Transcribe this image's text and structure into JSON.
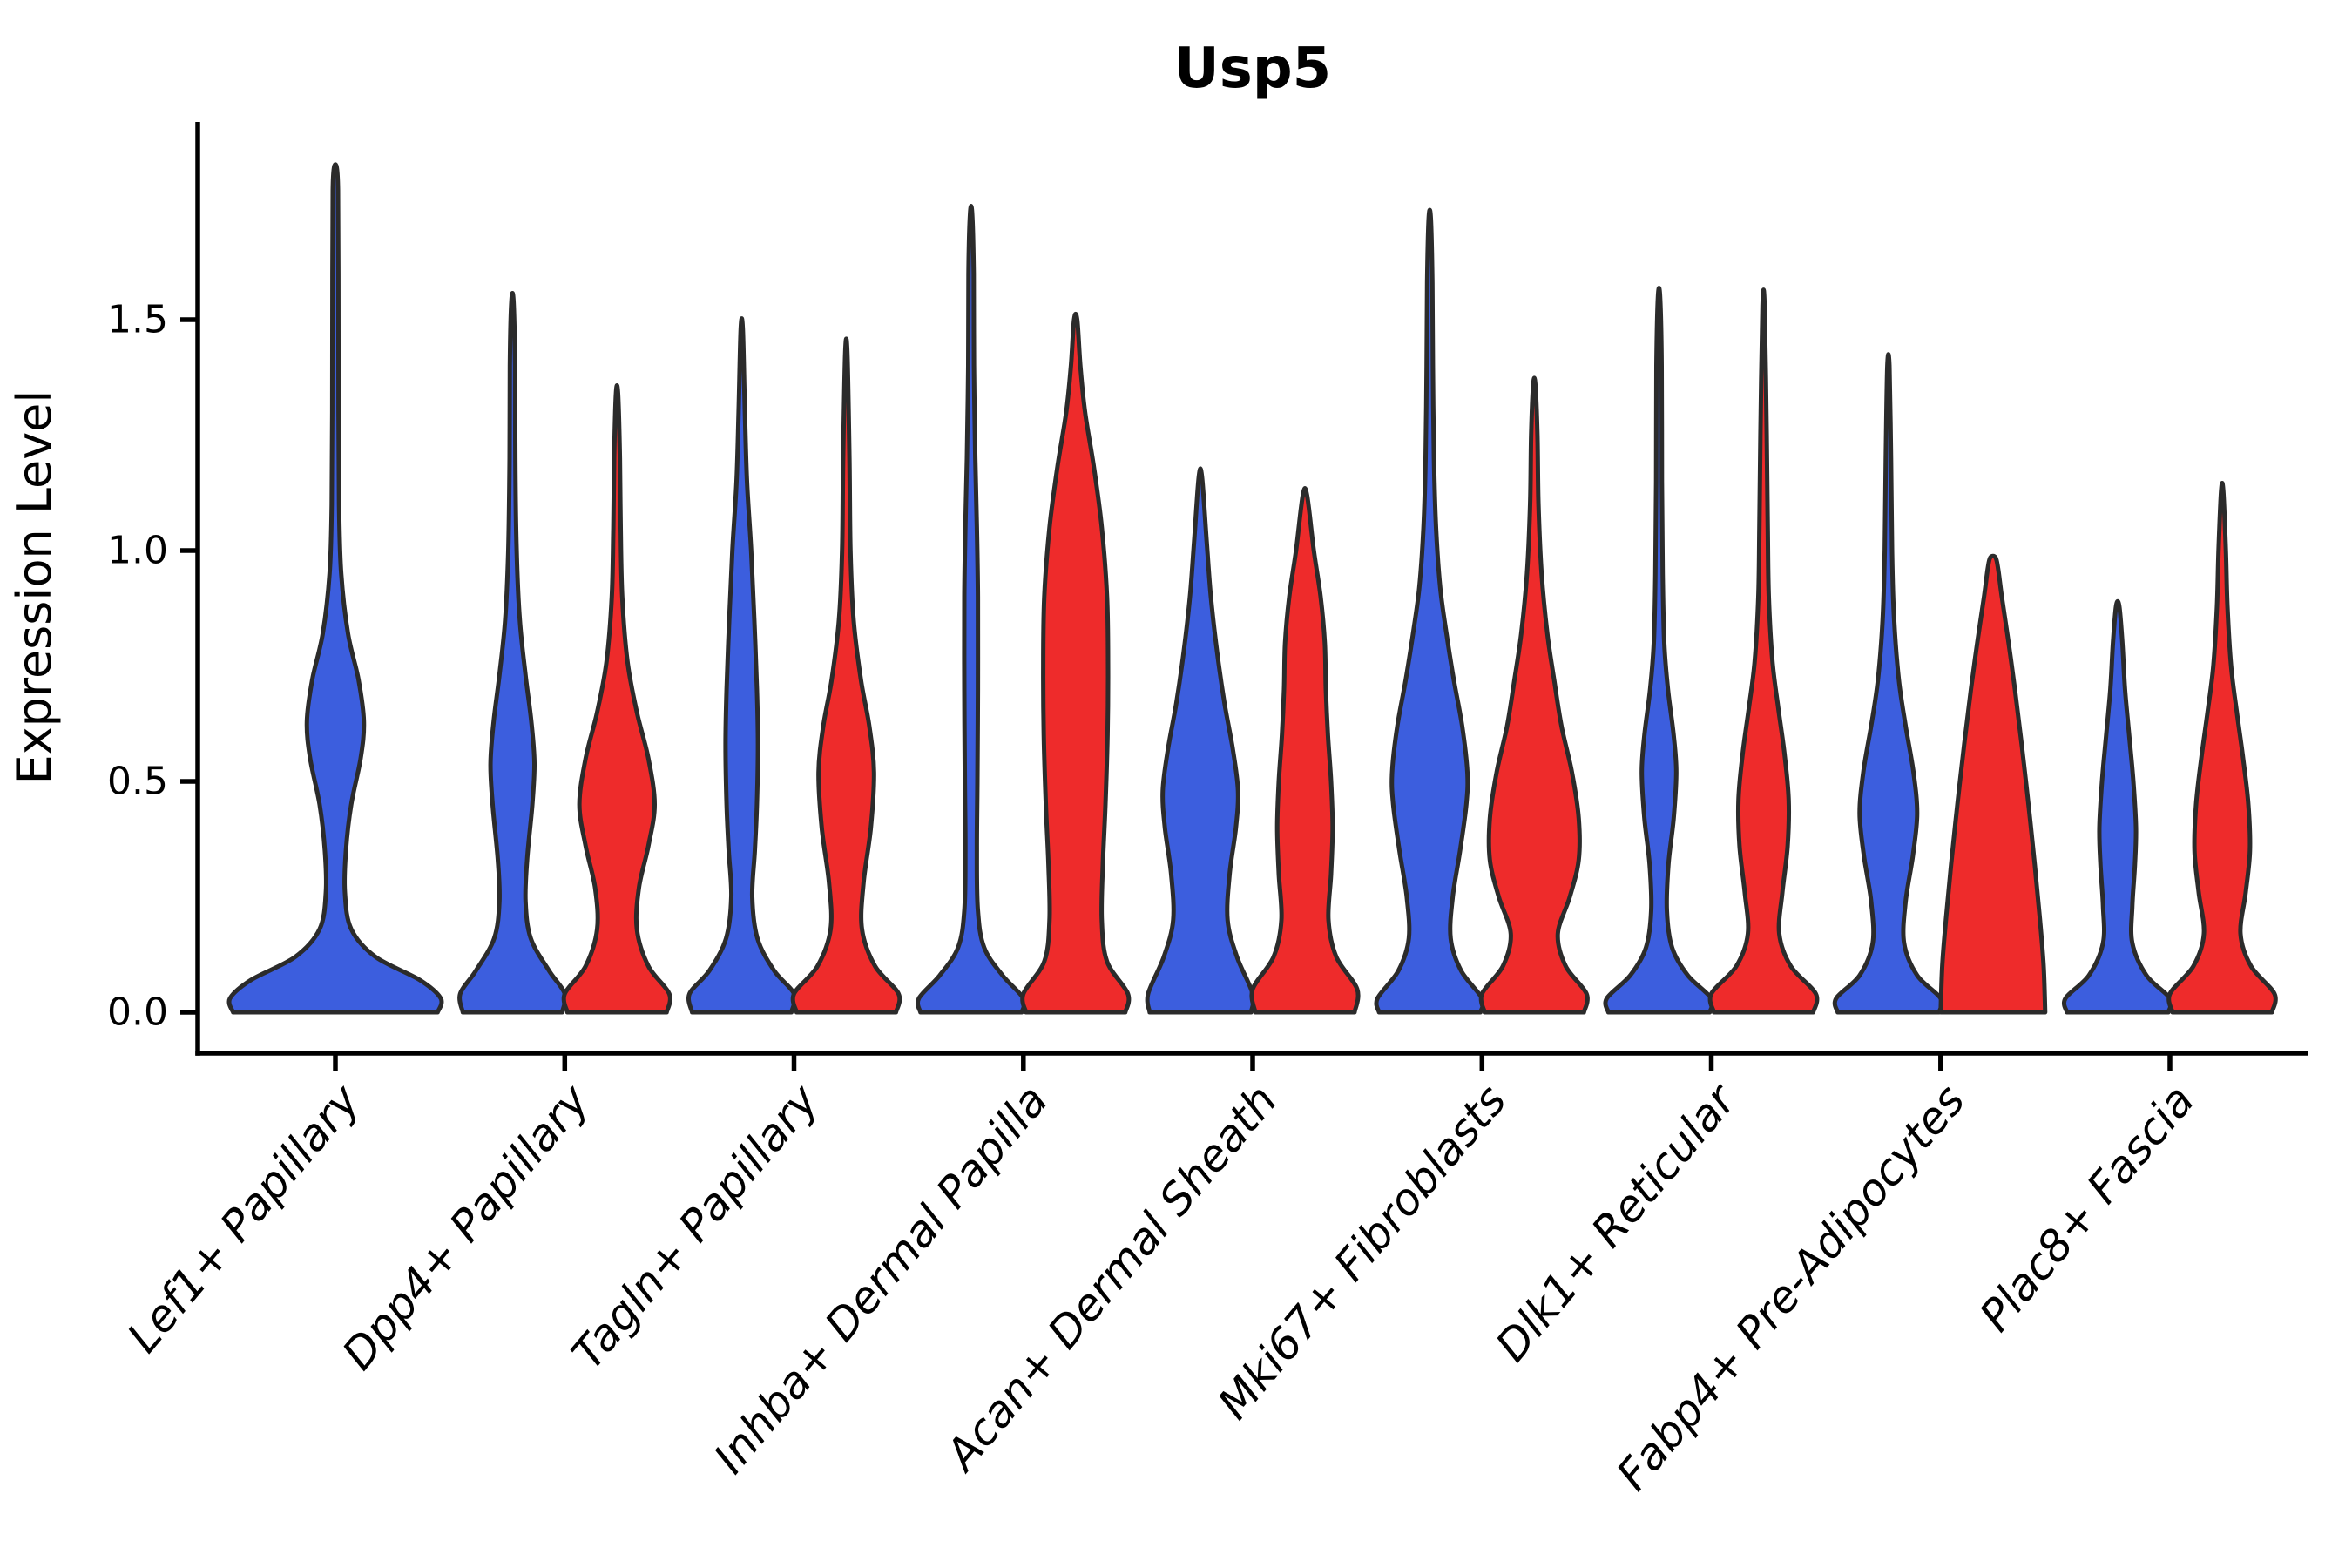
{
  "chart_data": {
    "type": "violin",
    "title": "Usp5",
    "ylabel": "Expression Level",
    "xlabel": "",
    "yticks": [
      0.0,
      0.5,
      1.0,
      1.5
    ],
    "ytick_labels": [
      "0.0",
      "0.5",
      "1.0",
      "1.5"
    ],
    "ylim": [
      -0.09,
      1.93
    ],
    "grid": false,
    "legend": "none",
    "categories": [
      "Lef1+ Papillary",
      "Dpp4+ Papillary",
      "Tagln+ Papillary",
      "Inhba+ Dermal Papilla",
      "Acan+ Dermal Sheath",
      "Mki67+ Fibroblasts",
      "Dlk1+ Reticular",
      "Fabp4+ Pre-Adipocytes",
      "Plac8+ Fascia"
    ],
    "series_colors": {
      "blue": "#3C5EDE",
      "red": "#EE2B2B"
    },
    "outline_color": "#2B2B2B",
    "violins": [
      {
        "category": "Lef1+ Papillary",
        "group": "blue",
        "side": "center",
        "color": "#3C5EDE",
        "max": 1.83,
        "profile": [
          [
            0,
            0.97
          ],
          [
            0.03,
            1.0
          ],
          [
            0.07,
            0.8
          ],
          [
            0.12,
            0.38
          ],
          [
            0.18,
            0.15
          ],
          [
            0.26,
            0.09
          ],
          [
            0.35,
            0.1
          ],
          [
            0.45,
            0.15
          ],
          [
            0.55,
            0.24
          ],
          [
            0.63,
            0.27
          ],
          [
            0.72,
            0.22
          ],
          [
            0.82,
            0.12
          ],
          [
            0.95,
            0.055
          ],
          [
            1.1,
            0.035
          ],
          [
            1.3,
            0.03
          ],
          [
            1.6,
            0.028
          ],
          [
            1.78,
            0.025
          ],
          [
            1.83,
            0.012
          ]
        ]
      },
      {
        "category": "Dpp4+ Papillary",
        "group": "blue",
        "side": "left",
        "color": "#3C5EDE",
        "max": 1.54,
        "profile": [
          [
            0,
            0.95
          ],
          [
            0.04,
            1.0
          ],
          [
            0.09,
            0.7
          ],
          [
            0.16,
            0.35
          ],
          [
            0.24,
            0.25
          ],
          [
            0.33,
            0.28
          ],
          [
            0.45,
            0.38
          ],
          [
            0.54,
            0.42
          ],
          [
            0.63,
            0.36
          ],
          [
            0.73,
            0.25
          ],
          [
            0.85,
            0.14
          ],
          [
            1.0,
            0.08
          ],
          [
            1.2,
            0.055
          ],
          [
            1.4,
            0.05
          ],
          [
            1.54,
            0.02
          ]
        ]
      },
      {
        "category": "Dpp4+ Papillary",
        "group": "red",
        "side": "right",
        "color": "#EE2B2B",
        "max": 1.34,
        "profile": [
          [
            0,
            0.95
          ],
          [
            0.04,
            1.0
          ],
          [
            0.1,
            0.6
          ],
          [
            0.18,
            0.38
          ],
          [
            0.27,
            0.42
          ],
          [
            0.36,
            0.6
          ],
          [
            0.45,
            0.72
          ],
          [
            0.55,
            0.6
          ],
          [
            0.65,
            0.38
          ],
          [
            0.76,
            0.2
          ],
          [
            0.9,
            0.1
          ],
          [
            1.05,
            0.07
          ],
          [
            1.2,
            0.055
          ],
          [
            1.34,
            0.02
          ]
        ]
      },
      {
        "category": "Tagln+ Papillary",
        "group": "blue",
        "side": "left",
        "color": "#3C5EDE",
        "max": 1.48,
        "profile": [
          [
            0,
            0.95
          ],
          [
            0.04,
            1.0
          ],
          [
            0.09,
            0.62
          ],
          [
            0.16,
            0.3
          ],
          [
            0.25,
            0.2
          ],
          [
            0.35,
            0.25
          ],
          [
            0.45,
            0.29
          ],
          [
            0.58,
            0.31
          ],
          [
            0.7,
            0.29
          ],
          [
            0.85,
            0.24
          ],
          [
            1.0,
            0.18
          ],
          [
            1.15,
            0.1
          ],
          [
            1.3,
            0.06
          ],
          [
            1.48,
            0.02
          ]
        ]
      },
      {
        "category": "Tagln+ Papillary",
        "group": "red",
        "side": "right",
        "color": "#EE2B2B",
        "max": 1.43,
        "profile": [
          [
            0,
            0.95
          ],
          [
            0.04,
            1.0
          ],
          [
            0.1,
            0.55
          ],
          [
            0.18,
            0.3
          ],
          [
            0.28,
            0.33
          ],
          [
            0.4,
            0.47
          ],
          [
            0.52,
            0.53
          ],
          [
            0.62,
            0.44
          ],
          [
            0.72,
            0.28
          ],
          [
            0.85,
            0.14
          ],
          [
            1.0,
            0.08
          ],
          [
            1.2,
            0.06
          ],
          [
            1.43,
            0.02
          ]
        ]
      },
      {
        "category": "Inhba+ Dermal Papilla",
        "group": "blue",
        "side": "left",
        "color": "#3C5EDE",
        "max": 1.73,
        "profile": [
          [
            0,
            0.97
          ],
          [
            0.03,
            1.0
          ],
          [
            0.08,
            0.6
          ],
          [
            0.14,
            0.25
          ],
          [
            0.22,
            0.13
          ],
          [
            0.35,
            0.11
          ],
          [
            0.5,
            0.12
          ],
          [
            0.7,
            0.13
          ],
          [
            0.9,
            0.13
          ],
          [
            1.05,
            0.11
          ],
          [
            1.2,
            0.08
          ],
          [
            1.4,
            0.055
          ],
          [
            1.6,
            0.05
          ],
          [
            1.73,
            0.02
          ]
        ]
      },
      {
        "category": "Inhba+ Dermal Papilla",
        "group": "red",
        "side": "right",
        "color": "#EE2B2B",
        "max": 1.5,
        "profile": [
          [
            0,
            0.95
          ],
          [
            0.04,
            1.0
          ],
          [
            0.11,
            0.6
          ],
          [
            0.2,
            0.5
          ],
          [
            0.32,
            0.52
          ],
          [
            0.45,
            0.57
          ],
          [
            0.6,
            0.61
          ],
          [
            0.75,
            0.62
          ],
          [
            0.9,
            0.6
          ],
          [
            1.05,
            0.5
          ],
          [
            1.18,
            0.35
          ],
          [
            1.3,
            0.18
          ],
          [
            1.4,
            0.09
          ],
          [
            1.5,
            0.03
          ]
        ]
      },
      {
        "category": "Acan+ Dermal Sheath",
        "group": "blue",
        "side": "left",
        "color": "#3C5EDE",
        "max": 1.16,
        "profile": [
          [
            0,
            0.97
          ],
          [
            0.04,
            1.0
          ],
          [
            0.12,
            0.7
          ],
          [
            0.2,
            0.52
          ],
          [
            0.3,
            0.56
          ],
          [
            0.4,
            0.68
          ],
          [
            0.48,
            0.72
          ],
          [
            0.57,
            0.62
          ],
          [
            0.67,
            0.46
          ],
          [
            0.78,
            0.32
          ],
          [
            0.9,
            0.2
          ],
          [
            1.02,
            0.12
          ],
          [
            1.16,
            0.03
          ]
        ]
      },
      {
        "category": "Acan+ Dermal Sheath",
        "group": "red",
        "side": "right",
        "color": "#EE2B2B",
        "max": 1.12,
        "profile": [
          [
            0,
            0.95
          ],
          [
            0.05,
            1.0
          ],
          [
            0.12,
            0.6
          ],
          [
            0.2,
            0.45
          ],
          [
            0.3,
            0.5
          ],
          [
            0.4,
            0.53
          ],
          [
            0.5,
            0.5
          ],
          [
            0.6,
            0.44
          ],
          [
            0.7,
            0.4
          ],
          [
            0.8,
            0.38
          ],
          [
            0.9,
            0.3
          ],
          [
            1.0,
            0.17
          ],
          [
            1.12,
            0.04
          ]
        ]
      },
      {
        "category": "Mki67+ Fibroblasts",
        "group": "blue",
        "side": "left",
        "color": "#3C5EDE",
        "max": 1.72,
        "profile": [
          [
            0,
            0.97
          ],
          [
            0.03,
            1.0
          ],
          [
            0.09,
            0.6
          ],
          [
            0.16,
            0.4
          ],
          [
            0.25,
            0.44
          ],
          [
            0.35,
            0.58
          ],
          [
            0.45,
            0.7
          ],
          [
            0.52,
            0.72
          ],
          [
            0.62,
            0.62
          ],
          [
            0.72,
            0.46
          ],
          [
            0.82,
            0.32
          ],
          [
            0.92,
            0.2
          ],
          [
            1.05,
            0.12
          ],
          [
            1.2,
            0.08
          ],
          [
            1.4,
            0.06
          ],
          [
            1.58,
            0.05
          ],
          [
            1.72,
            0.02
          ]
        ]
      },
      {
        "category": "Mki67+ Fibroblasts",
        "group": "red",
        "side": "right",
        "color": "#EE2B2B",
        "max": 1.36,
        "profile": [
          [
            0,
            0.95
          ],
          [
            0.04,
            1.0
          ],
          [
            0.1,
            0.6
          ],
          [
            0.17,
            0.45
          ],
          [
            0.25,
            0.68
          ],
          [
            0.33,
            0.85
          ],
          [
            0.42,
            0.85
          ],
          [
            0.52,
            0.72
          ],
          [
            0.62,
            0.52
          ],
          [
            0.72,
            0.38
          ],
          [
            0.82,
            0.25
          ],
          [
            0.95,
            0.14
          ],
          [
            1.1,
            0.08
          ],
          [
            1.25,
            0.06
          ],
          [
            1.36,
            0.02
          ]
        ]
      },
      {
        "category": "Dlk1+ Reticular",
        "group": "blue",
        "side": "left",
        "color": "#3C5EDE",
        "max": 1.55,
        "profile": [
          [
            0,
            0.97
          ],
          [
            0.03,
            1.0
          ],
          [
            0.08,
            0.55
          ],
          [
            0.14,
            0.25
          ],
          [
            0.22,
            0.15
          ],
          [
            0.32,
            0.18
          ],
          [
            0.42,
            0.28
          ],
          [
            0.52,
            0.33
          ],
          [
            0.6,
            0.28
          ],
          [
            0.7,
            0.17
          ],
          [
            0.8,
            0.1
          ],
          [
            0.95,
            0.07
          ],
          [
            1.15,
            0.055
          ],
          [
            1.4,
            0.05
          ],
          [
            1.55,
            0.02
          ]
        ]
      },
      {
        "category": "Dlk1+ Reticular",
        "group": "red",
        "side": "right",
        "color": "#EE2B2B",
        "max": 1.53,
        "profile": [
          [
            0,
            0.95
          ],
          [
            0.04,
            1.0
          ],
          [
            0.1,
            0.52
          ],
          [
            0.17,
            0.3
          ],
          [
            0.26,
            0.36
          ],
          [
            0.36,
            0.46
          ],
          [
            0.46,
            0.48
          ],
          [
            0.56,
            0.4
          ],
          [
            0.66,
            0.28
          ],
          [
            0.76,
            0.17
          ],
          [
            0.9,
            0.1
          ],
          [
            1.05,
            0.08
          ],
          [
            1.25,
            0.06
          ],
          [
            1.53,
            0.02
          ]
        ]
      },
      {
        "category": "Fabp4+ Pre-Adipocytes",
        "group": "blue",
        "side": "left",
        "color": "#3C5EDE",
        "max": 1.4,
        "profile": [
          [
            0,
            0.97
          ],
          [
            0.03,
            1.0
          ],
          [
            0.08,
            0.55
          ],
          [
            0.15,
            0.3
          ],
          [
            0.24,
            0.33
          ],
          [
            0.34,
            0.47
          ],
          [
            0.43,
            0.55
          ],
          [
            0.52,
            0.48
          ],
          [
            0.62,
            0.33
          ],
          [
            0.72,
            0.2
          ],
          [
            0.85,
            0.11
          ],
          [
            1.0,
            0.07
          ],
          [
            1.2,
            0.05
          ],
          [
            1.4,
            0.02
          ]
        ]
      },
      {
        "category": "Fabp4+ Pre-Adipocytes",
        "group": "red",
        "side": "right",
        "color": "#EE2B2B",
        "max": 0.985,
        "profile": [
          [
            0,
            1.0
          ],
          [
            0.1,
            0.97
          ],
          [
            0.2,
            0.9
          ],
          [
            0.32,
            0.8
          ],
          [
            0.45,
            0.68
          ],
          [
            0.58,
            0.55
          ],
          [
            0.7,
            0.42
          ],
          [
            0.8,
            0.3
          ],
          [
            0.9,
            0.17
          ],
          [
            0.96,
            0.1
          ],
          [
            0.985,
            0.05
          ]
        ]
      },
      {
        "category": "Plac8+ Fascia",
        "group": "blue",
        "side": "left",
        "color": "#3C5EDE",
        "max": 0.88,
        "profile": [
          [
            0,
            0.97
          ],
          [
            0.03,
            1.0
          ],
          [
            0.08,
            0.55
          ],
          [
            0.15,
            0.28
          ],
          [
            0.23,
            0.28
          ],
          [
            0.32,
            0.33
          ],
          [
            0.4,
            0.35
          ],
          [
            0.5,
            0.3
          ],
          [
            0.6,
            0.22
          ],
          [
            0.7,
            0.14
          ],
          [
            0.8,
            0.09
          ],
          [
            0.88,
            0.03
          ]
        ]
      },
      {
        "category": "Plac8+ Fascia",
        "group": "red",
        "side": "right",
        "color": "#EE2B2B",
        "max": 1.13,
        "profile": [
          [
            0,
            0.95
          ],
          [
            0.04,
            1.0
          ],
          [
            0.1,
            0.55
          ],
          [
            0.17,
            0.35
          ],
          [
            0.26,
            0.45
          ],
          [
            0.35,
            0.53
          ],
          [
            0.45,
            0.5
          ],
          [
            0.55,
            0.4
          ],
          [
            0.65,
            0.28
          ],
          [
            0.75,
            0.17
          ],
          [
            0.88,
            0.1
          ],
          [
            1.0,
            0.07
          ],
          [
            1.13,
            0.02
          ]
        ]
      }
    ]
  }
}
